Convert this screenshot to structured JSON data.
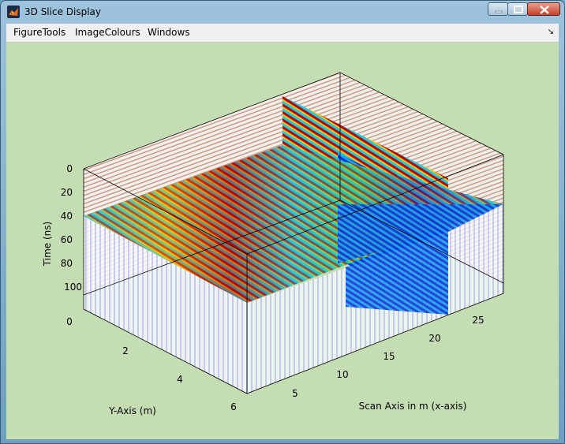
{
  "window": {
    "title": "3D Slice Display",
    "app_icon": "matlab-icon",
    "controls": [
      "minimize-icon",
      "maximize-icon",
      "close-icon"
    ]
  },
  "menubar": {
    "items": [
      "FigureTools",
      "ImageColours",
      "Windows"
    ],
    "dock_icon": "dock-arrow-icon"
  },
  "plot": {
    "colors": {
      "background": "#c5ddb3",
      "hot": "#b30000",
      "warm": "#f7c400",
      "cool": "#1ec8e6",
      "cold": "#1037d4"
    },
    "z_axis": {
      "label": "Time (ns)",
      "ticks": [
        "0",
        "20",
        "40",
        "60",
        "80",
        "100"
      ]
    },
    "y_axis": {
      "label": "Y-Axis (m)",
      "ticks": [
        "0",
        "2",
        "4",
        "6"
      ]
    },
    "x_axis": {
      "label": "Scan Axis in m (x-axis)",
      "ticks": [
        "5",
        "10",
        "15",
        "20",
        "25"
      ]
    }
  }
}
